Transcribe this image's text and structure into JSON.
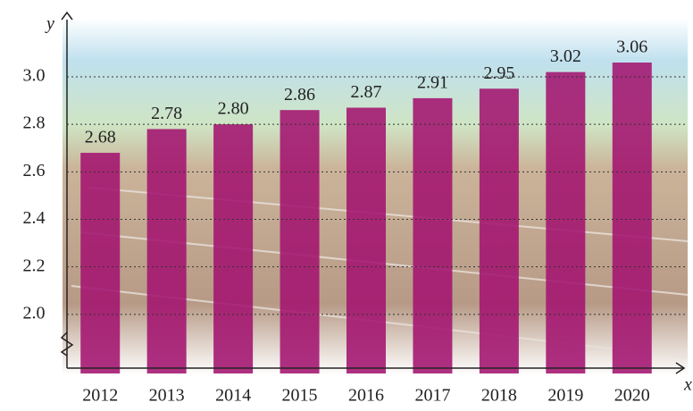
{
  "chart_data": {
    "type": "bar",
    "x_label": "x",
    "y_label": "y",
    "categories": [
      "2012",
      "2013",
      "2014",
      "2015",
      "2016",
      "2017",
      "2018",
      "2019",
      "2020"
    ],
    "values": [
      2.68,
      2.78,
      2.8,
      2.86,
      2.87,
      2.91,
      2.95,
      3.02,
      3.06
    ],
    "value_labels": [
      "2.68",
      "2.78",
      "2.80",
      "2.86",
      "2.87",
      "2.91",
      "2.95",
      "3.02",
      "3.06"
    ],
    "color": "#a3136f",
    "ylim": [
      1.8,
      3.2
    ],
    "yticks": [
      {
        "value": 2,
        "label": "2.0"
      },
      2.2,
      2.4,
      2.6,
      2.8,
      {
        "value": 3,
        "label": "3.0"
      }
    ],
    "grid": true
  }
}
